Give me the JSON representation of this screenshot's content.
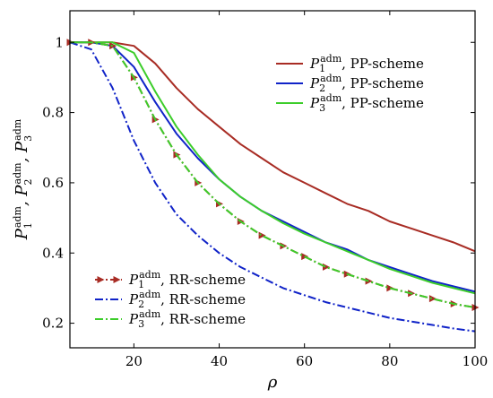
{
  "chart_data": {
    "type": "line",
    "xlabel": "ρ",
    "ylabel": "P1adm, P2adm, P3adm",
    "xlim": [
      5,
      100
    ],
    "ylim": [
      0.13,
      1.09
    ],
    "xticks": [
      20,
      40,
      60,
      80,
      100
    ],
    "yticks": [
      0.2,
      0.4,
      0.6,
      0.8,
      1
    ],
    "grid": false,
    "legend_placement": [
      "top-right",
      "bottom-left"
    ],
    "series": [
      {
        "name": "P1adm, PP-scheme",
        "color": "#a82c24",
        "style": "solid",
        "x": [
          5,
          10,
          15,
          20,
          25,
          30,
          35,
          40,
          45,
          50,
          55,
          60,
          65,
          70,
          75,
          80,
          85,
          90,
          95,
          100
        ],
        "y": [
          1.0,
          1.0,
          1.0,
          0.99,
          0.94,
          0.87,
          0.81,
          0.76,
          0.71,
          0.67,
          0.63,
          0.6,
          0.57,
          0.54,
          0.52,
          0.49,
          0.47,
          0.45,
          0.43,
          0.405
        ]
      },
      {
        "name": "P2adm, PP-scheme",
        "color": "#1023c8",
        "style": "solid",
        "x": [
          5,
          10,
          15,
          20,
          25,
          30,
          35,
          40,
          45,
          50,
          55,
          60,
          65,
          70,
          75,
          80,
          85,
          90,
          95,
          100
        ],
        "y": [
          1.0,
          1.0,
          0.99,
          0.93,
          0.83,
          0.74,
          0.67,
          0.61,
          0.56,
          0.52,
          0.49,
          0.46,
          0.43,
          0.41,
          0.38,
          0.36,
          0.34,
          0.32,
          0.305,
          0.29
        ]
      },
      {
        "name": "P3adm, PP-scheme",
        "color": "#3ccd2a",
        "style": "solid",
        "x": [
          5,
          10,
          15,
          20,
          25,
          30,
          35,
          40,
          45,
          50,
          55,
          60,
          65,
          70,
          75,
          80,
          85,
          90,
          95,
          100
        ],
        "y": [
          1.0,
          1.0,
          1.0,
          0.97,
          0.86,
          0.76,
          0.68,
          0.61,
          0.56,
          0.52,
          0.485,
          0.455,
          0.43,
          0.405,
          0.38,
          0.355,
          0.335,
          0.315,
          0.3,
          0.285
        ]
      },
      {
        "name": "P1adm, RR-scheme",
        "color": "#a82c24",
        "style": "dashdot-triangles",
        "x": [
          5,
          10,
          15,
          20,
          25,
          30,
          35,
          40,
          45,
          50,
          55,
          60,
          65,
          70,
          75,
          80,
          85,
          90,
          95,
          100
        ],
        "y": [
          1.0,
          1.0,
          0.99,
          0.9,
          0.78,
          0.68,
          0.6,
          0.54,
          0.49,
          0.45,
          0.42,
          0.39,
          0.36,
          0.34,
          0.32,
          0.3,
          0.285,
          0.27,
          0.255,
          0.245
        ]
      },
      {
        "name": "P2adm, RR-scheme",
        "color": "#1023c8",
        "style": "dashdot",
        "x": [
          5,
          10,
          15,
          20,
          25,
          30,
          35,
          40,
          45,
          50,
          55,
          60,
          65,
          70,
          75,
          80,
          85,
          90,
          95,
          100
        ],
        "y": [
          1.0,
          0.98,
          0.87,
          0.72,
          0.6,
          0.51,
          0.45,
          0.4,
          0.36,
          0.33,
          0.3,
          0.28,
          0.26,
          0.245,
          0.23,
          0.215,
          0.205,
          0.195,
          0.185,
          0.177
        ]
      },
      {
        "name": "P3adm, RR-scheme",
        "color": "#3ccd2a",
        "style": "dashdot",
        "x": [
          5,
          10,
          15,
          20,
          25,
          30,
          35,
          40,
          45,
          50,
          55,
          60,
          65,
          70,
          75,
          80,
          85,
          90,
          95,
          100
        ],
        "y": [
          1.0,
          1.0,
          0.99,
          0.9,
          0.78,
          0.68,
          0.6,
          0.54,
          0.49,
          0.45,
          0.42,
          0.39,
          0.36,
          0.34,
          0.32,
          0.3,
          0.285,
          0.27,
          0.255,
          0.245
        ]
      }
    ]
  },
  "legend_top": [
    {
      "sym": "P",
      "sub": "1",
      "sup": "adm",
      "label": ", PP-scheme",
      "color": "#a82c24",
      "style": "solid"
    },
    {
      "sym": "P",
      "sub": "2",
      "sup": "adm",
      "label": ", PP-scheme",
      "color": "#1023c8",
      "style": "solid"
    },
    {
      "sym": "P",
      "sub": "3",
      "sup": "adm",
      "label": ", PP-scheme",
      "color": "#3ccd2a",
      "style": "solid"
    }
  ],
  "legend_bottom": [
    {
      "sym": "P",
      "sub": "1",
      "sup": "adm",
      "label": ", RR-scheme",
      "color": "#a82c24",
      "style": "dashdot-triangles"
    },
    {
      "sym": "P",
      "sub": "2",
      "sup": "adm",
      "label": ", RR-scheme",
      "color": "#1023c8",
      "style": "dashdot"
    },
    {
      "sym": "P",
      "sub": "3",
      "sup": "adm",
      "label": ", RR-scheme",
      "color": "#3ccd2a",
      "style": "dashdot"
    }
  ]
}
